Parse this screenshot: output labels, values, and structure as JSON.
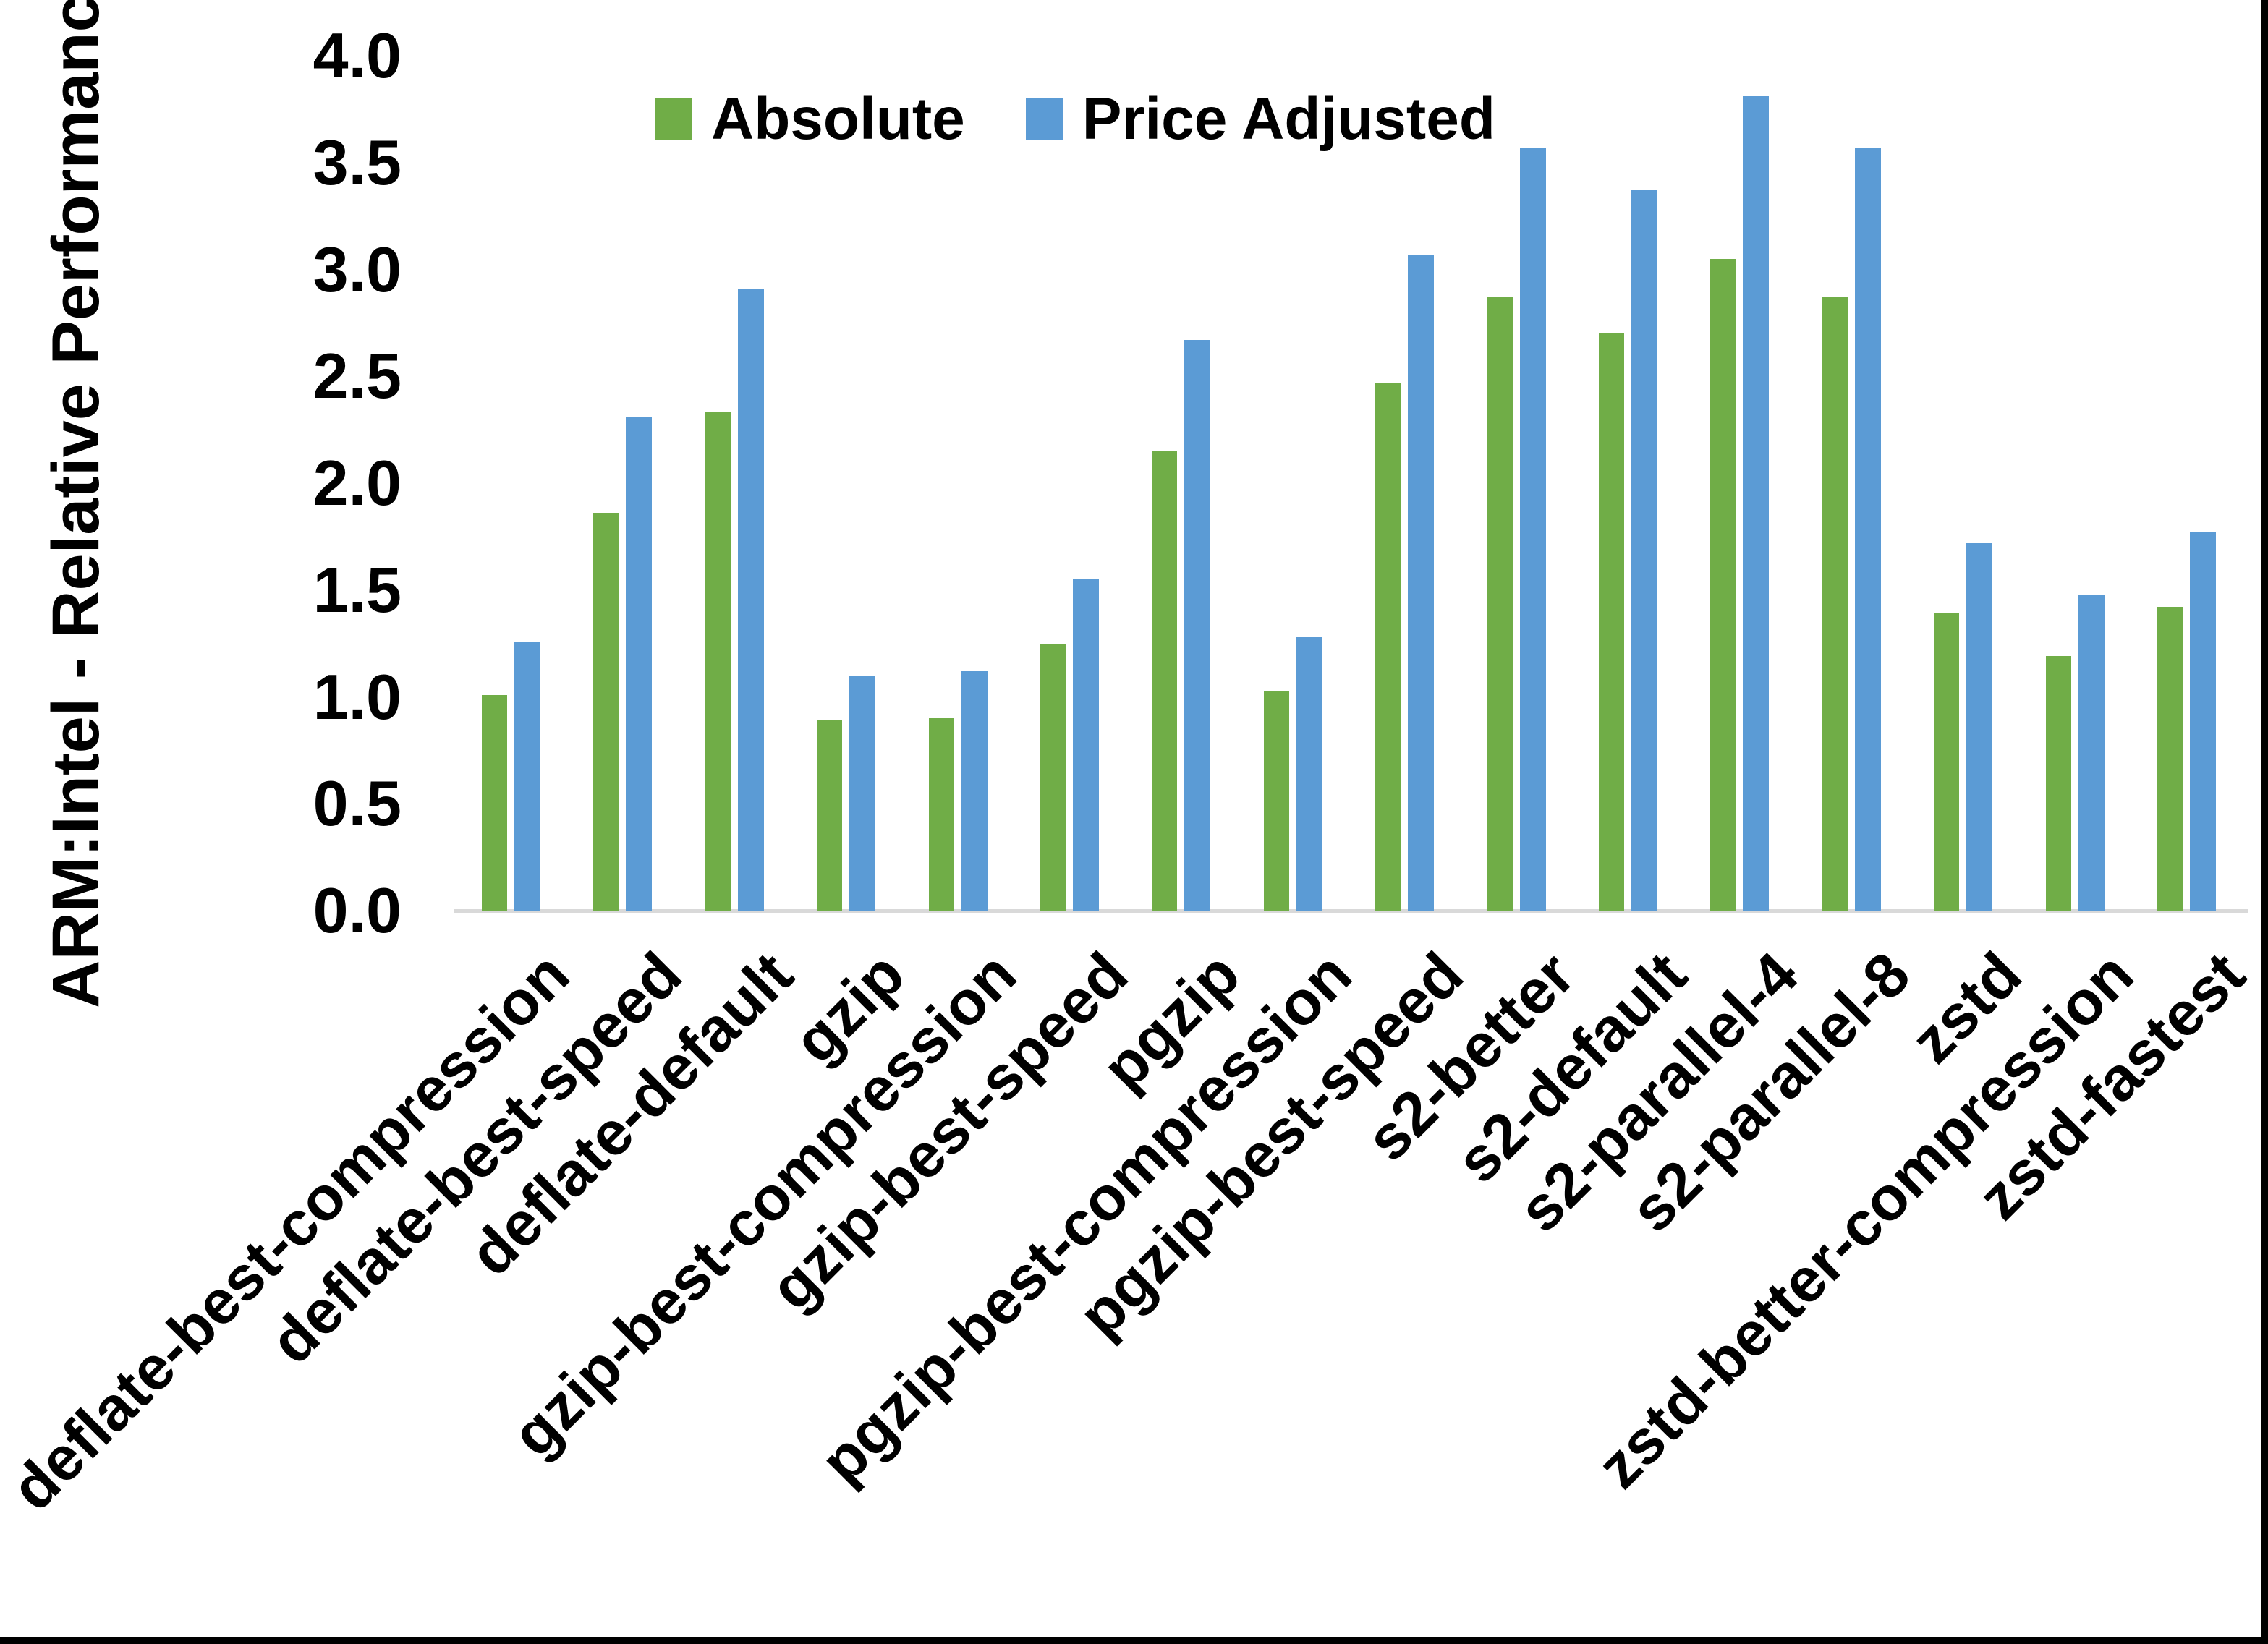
{
  "y_axis_title": "ARM:Intel - Relative Performance",
  "chart_data": {
    "type": "bar",
    "title": "",
    "xlabel": "",
    "ylabel": "ARM:Intel - Relative Performance",
    "ylim": [
      0.0,
      4.0
    ],
    "ytick_step": 0.5,
    "ytick_labels": [
      "0.0",
      "0.5",
      "1.0",
      "1.5",
      "2.0",
      "2.5",
      "3.0",
      "3.5",
      "4.0"
    ],
    "grid": false,
    "legend_position": "top-center",
    "axis_line_color": "#d9d9d9",
    "categories": [
      "deflate-best-compression",
      "deflate-best-speed",
      "deflate-default",
      "gzip",
      "gzip-best-compression",
      "gzip-best-speed",
      "pgzip",
      "pgzip-best-compression",
      "pgzip-best-speed",
      "s2-better",
      "s2-default",
      "s2-parallel-4",
      "s2-parallel-8",
      "zstd",
      "zstd-better-compression",
      "zstd-fastest"
    ],
    "series": [
      {
        "name": "Absolute",
        "color": "#70AD47",
        "values": [
          1.01,
          1.86,
          2.33,
          0.89,
          0.9,
          1.25,
          2.15,
          1.03,
          2.47,
          2.87,
          2.7,
          3.05,
          2.87,
          1.39,
          1.19,
          1.42
        ]
      },
      {
        "name": "Price Adjusted",
        "color": "#5B9BD5",
        "values": [
          1.26,
          2.31,
          2.91,
          1.1,
          1.12,
          1.55,
          2.67,
          1.28,
          3.07,
          3.57,
          3.37,
          3.81,
          3.57,
          1.72,
          1.48,
          1.77
        ]
      }
    ]
  }
}
